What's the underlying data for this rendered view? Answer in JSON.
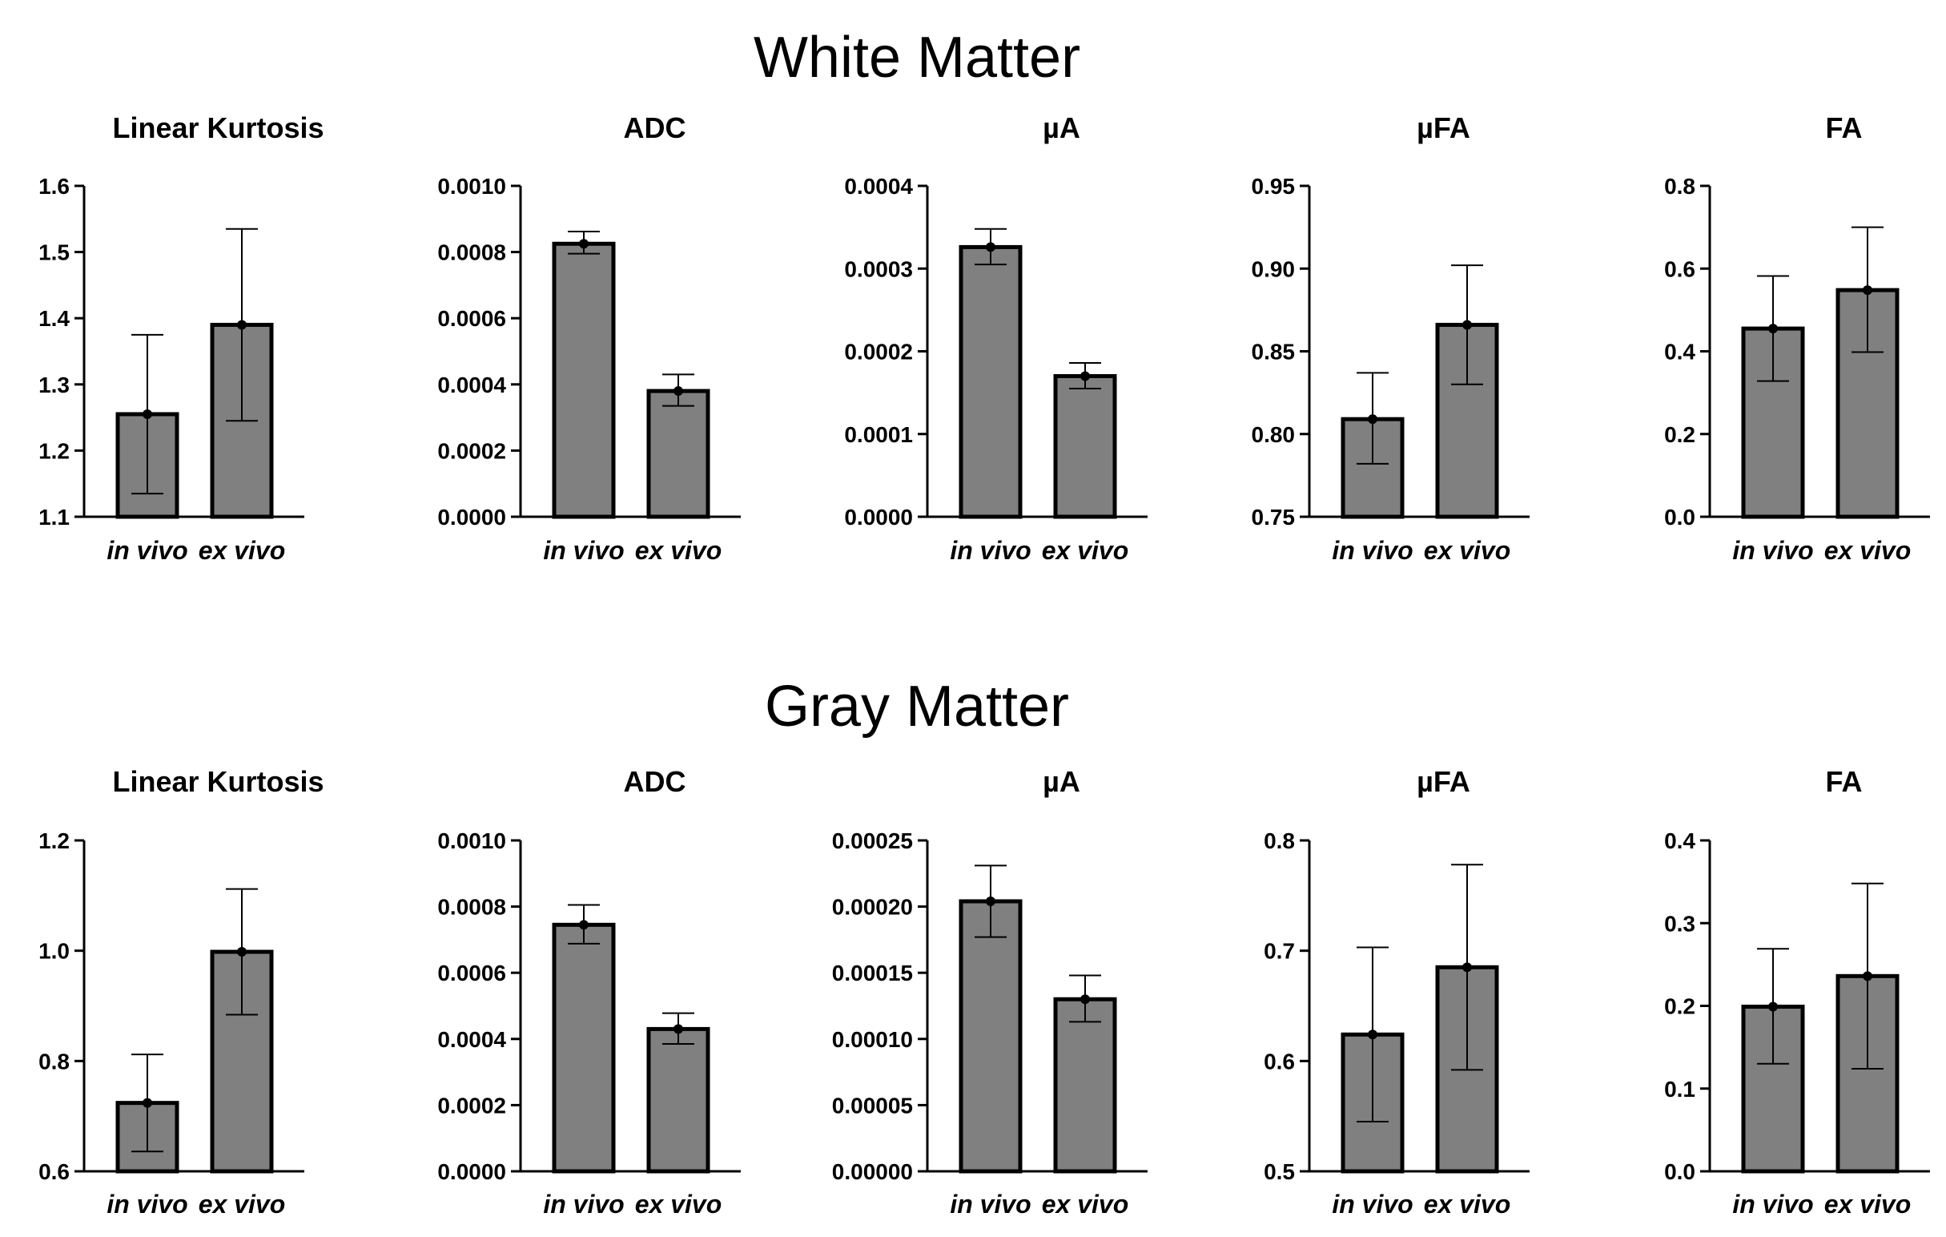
{
  "figure": {
    "sections": [
      {
        "title": "White Matter",
        "charts": [
          {
            "title": "Linear Kurtosis",
            "ticks": [
              "1.1",
              "1.2",
              "1.3",
              "1.4",
              "1.5",
              "1.6"
            ]
          },
          {
            "title": "ADC",
            "ticks": [
              "0.0000",
              "0.0002",
              "0.0004",
              "0.0006",
              "0.0008",
              "0.0010"
            ]
          },
          {
            "title": "µA",
            "ticks": [
              "0.0000",
              "0.0001",
              "0.0002",
              "0.0003",
              "0.0004"
            ]
          },
          {
            "title": "µFA",
            "ticks": [
              "0.75",
              "0.80",
              "0.85",
              "0.90",
              "0.95"
            ]
          },
          {
            "title": "FA",
            "ticks": [
              "0.0",
              "0.2",
              "0.4",
              "0.6",
              "0.8"
            ]
          }
        ]
      },
      {
        "title": "Gray Matter",
        "charts": [
          {
            "title": "Linear Kurtosis",
            "ticks": [
              "0.6",
              "0.8",
              "1.0",
              "1.2"
            ]
          },
          {
            "title": "ADC",
            "ticks": [
              "0.0000",
              "0.0002",
              "0.0004",
              "0.0006",
              "0.0008",
              "0.0010"
            ]
          },
          {
            "title": "µA",
            "ticks": [
              "0.00000",
              "0.00005",
              "0.00010",
              "0.00015",
              "0.00020",
              "0.00025"
            ]
          },
          {
            "title": "µFA",
            "ticks": [
              "0.5",
              "0.6",
              "0.7",
              "0.8"
            ]
          },
          {
            "title": "FA",
            "ticks": [
              "0.0",
              "0.1",
              "0.2",
              "0.3",
              "0.4"
            ]
          }
        ]
      }
    ]
  },
  "colors": {
    "bar_fill": "#808080",
    "ink": "#000000"
  },
  "chart_data": [
    {
      "type": "bar",
      "section": "White Matter",
      "title": "Linear Kurtosis",
      "categories": [
        "in vivo",
        "ex vivo"
      ],
      "values": [
        1.255,
        1.39
      ],
      "error_upper": [
        1.375,
        1.535
      ],
      "error_lower": [
        1.135,
        1.245
      ],
      "ylim": [
        1.1,
        1.6
      ],
      "xlabel": "",
      "ylabel": ""
    },
    {
      "type": "bar",
      "section": "White Matter",
      "title": "ADC",
      "categories": [
        "in vivo",
        "ex vivo"
      ],
      "values": [
        0.000825,
        0.00038
      ],
      "error_upper": [
        0.000862,
        0.00043
      ],
      "error_lower": [
        0.000795,
        0.000335
      ],
      "ylim": [
        0,
        0.001
      ],
      "xlabel": "",
      "ylabel": ""
    },
    {
      "type": "bar",
      "section": "White Matter",
      "title": "µA",
      "categories": [
        "in vivo",
        "ex vivo"
      ],
      "values": [
        0.000326,
        0.00017
      ],
      "error_upper": [
        0.000348,
        0.000186
      ],
      "error_lower": [
        0.000305,
        0.000155
      ],
      "ylim": [
        0,
        0.0004
      ],
      "xlabel": "",
      "ylabel": ""
    },
    {
      "type": "bar",
      "section": "White Matter",
      "title": "µFA",
      "categories": [
        "in vivo",
        "ex vivo"
      ],
      "values": [
        0.809,
        0.866
      ],
      "error_upper": [
        0.837,
        0.902
      ],
      "error_lower": [
        0.782,
        0.83
      ],
      "ylim": [
        0.75,
        0.95
      ],
      "xlabel": "",
      "ylabel": ""
    },
    {
      "type": "bar",
      "section": "White Matter",
      "title": "FA",
      "categories": [
        "in vivo",
        "ex vivo"
      ],
      "values": [
        0.455,
        0.548
      ],
      "error_upper": [
        0.582,
        0.7
      ],
      "error_lower": [
        0.328,
        0.398
      ],
      "ylim": [
        0,
        0.8
      ],
      "xlabel": "",
      "ylabel": ""
    },
    {
      "type": "bar",
      "section": "Gray Matter",
      "title": "Linear Kurtosis",
      "categories": [
        "in vivo",
        "ex vivo"
      ],
      "values": [
        0.724,
        0.998
      ],
      "error_upper": [
        0.812,
        1.112
      ],
      "error_lower": [
        0.636,
        0.884
      ],
      "ylim": [
        0.6,
        1.2
      ],
      "xlabel": "",
      "ylabel": ""
    },
    {
      "type": "bar",
      "section": "Gray Matter",
      "title": "ADC",
      "categories": [
        "in vivo",
        "ex vivo"
      ],
      "values": [
        0.000745,
        0.00043
      ],
      "error_upper": [
        0.000805,
        0.000478
      ],
      "error_lower": [
        0.000688,
        0.000385
      ],
      "ylim": [
        0,
        0.001
      ],
      "xlabel": "",
      "ylabel": ""
    },
    {
      "type": "bar",
      "section": "Gray Matter",
      "title": "µA",
      "categories": [
        "in vivo",
        "ex vivo"
      ],
      "values": [
        0.000204,
        0.00013
      ],
      "error_upper": [
        0.000231,
        0.000148
      ],
      "error_lower": [
        0.000177,
        0.000113
      ],
      "ylim": [
        0,
        0.00025
      ],
      "xlabel": "",
      "ylabel": ""
    },
    {
      "type": "bar",
      "section": "Gray Matter",
      "title": "µFA",
      "categories": [
        "in vivo",
        "ex vivo"
      ],
      "values": [
        0.624,
        0.685
      ],
      "error_upper": [
        0.703,
        0.778
      ],
      "error_lower": [
        0.545,
        0.592
      ],
      "ylim": [
        0.5,
        0.8
      ],
      "xlabel": "",
      "ylabel": ""
    },
    {
      "type": "bar",
      "section": "Gray Matter",
      "title": "FA",
      "categories": [
        "in vivo",
        "ex vivo"
      ],
      "values": [
        0.199,
        0.236
      ],
      "error_upper": [
        0.269,
        0.348
      ],
      "error_lower": [
        0.13,
        0.124
      ],
      "ylim": [
        0,
        0.4
      ],
      "xlabel": "",
      "ylabel": ""
    }
  ]
}
